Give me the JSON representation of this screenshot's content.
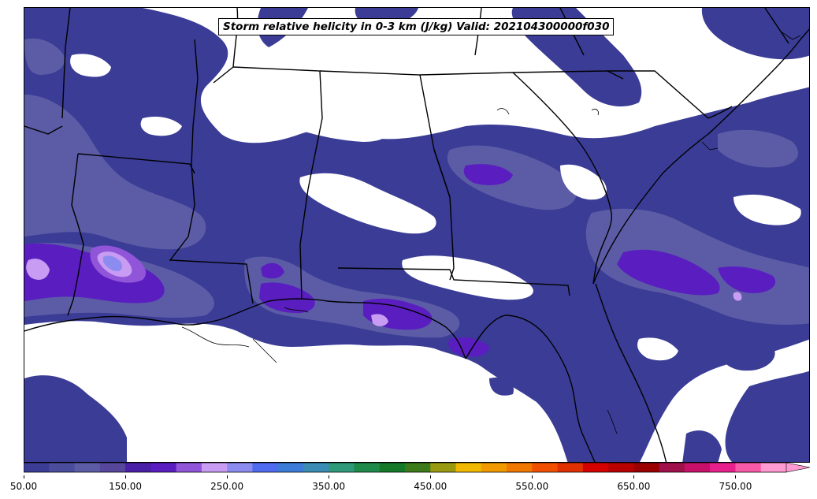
{
  "map": {
    "title": "Storm relative helicity in 0-3 km (J/kg) Valid: 202104300000f030",
    "colorbar": {
      "min": 50,
      "max": 800,
      "step": 25,
      "tick_labels": [
        "50.00",
        "150.00",
        "250.00",
        "350.00",
        "450.00",
        "550.00",
        "650.00",
        "750.00"
      ],
      "tick_values": [
        50,
        150,
        250,
        350,
        450,
        550,
        650,
        750
      ],
      "extend": "max",
      "colors": [
        "#3a3c96",
        "#4a4c9c",
        "#5c5ca6",
        "#57479c",
        "#4a1fa8",
        "#5a1ec0",
        "#9055d8",
        "#c79cf2",
        "#8c8cf0",
        "#4f6bf0",
        "#3c7cd8",
        "#3a8cb4",
        "#2f9a7a",
        "#208a4a",
        "#147a2a",
        "#3c7a1a",
        "#9a9a10",
        "#f0b800",
        "#f09a00",
        "#f07800",
        "#f05000",
        "#e03000",
        "#d40000",
        "#b80000",
        "#9a0000",
        "#a0104a",
        "#c8106a",
        "#e8208c",
        "#f85aa8",
        "#ff9ad2"
      ]
    },
    "layers": {
      "shading_color_low": "#3a3c96",
      "shading_color_mid": "#5c5ca6",
      "shading_color_high": "#5a1ec0",
      "shading_color_peak": "#9a8cf0",
      "boundary_color": "#000000"
    }
  }
}
